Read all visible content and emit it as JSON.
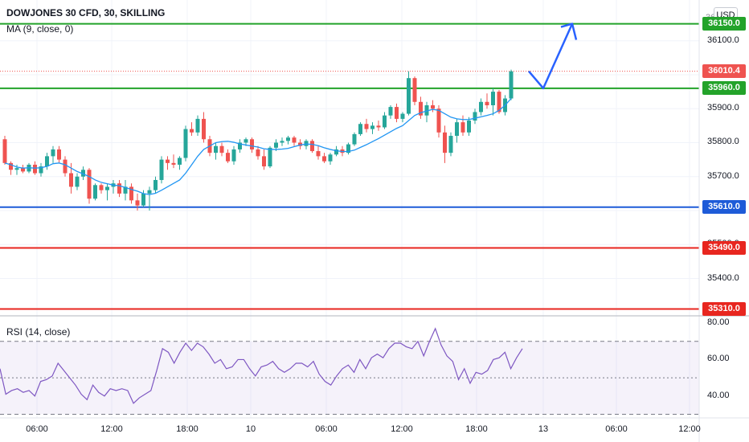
{
  "header": {
    "title": "DOWJONES 30 CFD, 30, SKILLING",
    "ma_label": "MA (9, close, 0)",
    "rsi_label": "RSI (14, close)",
    "currency": "USD",
    "top_price_partial": "36200.0"
  },
  "colors": {
    "up": "#26a69a",
    "down": "#ef5350",
    "ma": "#2196f3",
    "rsi": "#7e57c2",
    "green_level": "#23a32a",
    "blue_level": "#1e5bd8",
    "red_level": "#e8261f",
    "arrow": "#2962ff"
  },
  "chart_data": [
    {
      "type": "candlestick",
      "title": "DOWJONES 30 CFD, 30, SKILLING",
      "y_ticks": [
        35400.0,
        35500.0,
        35600.0,
        35700.0,
        35800.0,
        35900.0,
        36000.0,
        36100.0
      ],
      "y_tick_labels": [
        "35400.0",
        "35500.0",
        "35600.0",
        "35700.0",
        "35800.0",
        "35900.0",
        "36000.0",
        "36100.0"
      ],
      "ylim": [
        35290,
        36220
      ],
      "x_tick_labels": [
        "06:00",
        "12:00",
        "18:00",
        "10",
        "06:00",
        "12:00",
        "18:00",
        "13",
        "06:00",
        "12:00"
      ],
      "grid": true,
      "ohlc_approx": [
        [
          35810,
          35820,
          35735,
          35740
        ],
        [
          35740,
          35745,
          35705,
          35720
        ],
        [
          35720,
          35735,
          35705,
          35725
        ],
        [
          35725,
          35735,
          35710,
          35715
        ],
        [
          35715,
          35740,
          35710,
          35735
        ],
        [
          35735,
          35745,
          35705,
          35710
        ],
        [
          35710,
          35740,
          35700,
          35730
        ],
        [
          35730,
          35770,
          35720,
          35760
        ],
        [
          35760,
          35790,
          35740,
          35780
        ],
        [
          35780,
          35790,
          35740,
          35750
        ],
        [
          35750,
          35760,
          35700,
          35710
        ],
        [
          35710,
          35740,
          35650,
          35670
        ],
        [
          35670,
          35710,
          35660,
          35700
        ],
        [
          35700,
          35730,
          35690,
          35720
        ],
        [
          35720,
          35725,
          35620,
          35635
        ],
        [
          35635,
          35680,
          35630,
          35675
        ],
        [
          35675,
          35680,
          35650,
          35660
        ],
        [
          35660,
          35680,
          35630,
          35670
        ],
        [
          35670,
          35690,
          35650,
          35680
        ],
        [
          35680,
          35690,
          35640,
          35650
        ],
        [
          35650,
          35690,
          35630,
          35670
        ],
        [
          35670,
          35680,
          35620,
          35630
        ],
        [
          35630,
          35650,
          35600,
          35615
        ],
        [
          35615,
          35660,
          35610,
          35650
        ],
        [
          35650,
          35670,
          35600,
          35660
        ],
        [
          35660,
          35700,
          35650,
          35690
        ],
        [
          35690,
          35760,
          35680,
          35750
        ],
        [
          35750,
          35760,
          35720,
          35740
        ],
        [
          35740,
          35765,
          35725,
          35735
        ],
        [
          35735,
          35760,
          35720,
          35755
        ],
        [
          35755,
          35850,
          35745,
          35840
        ],
        [
          35840,
          35860,
          35820,
          35830
        ],
        [
          35830,
          35880,
          35820,
          35870
        ],
        [
          35870,
          35890,
          35800,
          35810
        ],
        [
          35810,
          35820,
          35760,
          35770
        ],
        [
          35770,
          35800,
          35750,
          35790
        ],
        [
          35790,
          35800,
          35760,
          35770
        ],
        [
          35770,
          35780,
          35740,
          35745
        ],
        [
          35745,
          35790,
          35735,
          35780
        ],
        [
          35780,
          35810,
          35770,
          35800
        ],
        [
          35800,
          35815,
          35790,
          35810
        ],
        [
          35810,
          35815,
          35770,
          35780
        ],
        [
          35780,
          35790,
          35750,
          35760
        ],
        [
          35760,
          35780,
          35720,
          35730
        ],
        [
          35730,
          35790,
          35725,
          35785
        ],
        [
          35785,
          35810,
          35775,
          35800
        ],
        [
          35800,
          35815,
          35790,
          35805
        ],
        [
          35805,
          35820,
          35795,
          35815
        ],
        [
          35815,
          35820,
          35790,
          35800
        ],
        [
          35800,
          35810,
          35780,
          35790
        ],
        [
          35790,
          35810,
          35780,
          35805
        ],
        [
          35805,
          35810,
          35770,
          35775
        ],
        [
          35775,
          35790,
          35750,
          35760
        ],
        [
          35760,
          35770,
          35740,
          35745
        ],
        [
          35745,
          35770,
          35735,
          35765
        ],
        [
          35765,
          35790,
          35760,
          35780
        ],
        [
          35780,
          35790,
          35760,
          35770
        ],
        [
          35770,
          35800,
          35765,
          35795
        ],
        [
          35795,
          35830,
          35790,
          35825
        ],
        [
          35825,
          35860,
          35820,
          35855
        ],
        [
          35855,
          35870,
          35830,
          35840
        ],
        [
          35840,
          35860,
          35825,
          35850
        ],
        [
          35850,
          35865,
          35835,
          35845
        ],
        [
          35845,
          35890,
          35840,
          35880
        ],
        [
          35880,
          35910,
          35870,
          35905
        ],
        [
          35905,
          35915,
          35860,
          35870
        ],
        [
          35870,
          35890,
          35860,
          35885
        ],
        [
          35885,
          36010,
          35880,
          35990
        ],
        [
          35990,
          35995,
          35910,
          35920
        ],
        [
          35920,
          35935,
          35870,
          35880
        ],
        [
          35880,
          35920,
          35860,
          35910
        ],
        [
          35910,
          35925,
          35890,
          35900
        ],
        [
          35900,
          35910,
          35815,
          35830
        ],
        [
          35830,
          35850,
          35740,
          35770
        ],
        [
          35770,
          35830,
          35760,
          35820
        ],
        [
          35820,
          35870,
          35800,
          35860
        ],
        [
          35860,
          35880,
          35820,
          35830
        ],
        [
          35830,
          35875,
          35820,
          35865
        ],
        [
          35865,
          35900,
          35855,
          35890
        ],
        [
          35890,
          35930,
          35880,
          35920
        ],
        [
          35920,
          35945,
          35900,
          35910
        ],
        [
          35910,
          35960,
          35880,
          35950
        ],
        [
          35950,
          35955,
          35885,
          35890
        ],
        [
          35890,
          35940,
          35880,
          35930
        ],
        [
          35930,
          36015,
          35925,
          36010
        ]
      ],
      "ma_approx": [
        35740,
        35735,
        35728,
        35725,
        35726,
        35725,
        35726,
        35730,
        35738,
        35740,
        35735,
        35725,
        35715,
        35708,
        35700,
        35690,
        35683,
        35679,
        35675,
        35673,
        35668,
        35662,
        35657,
        35650,
        35647,
        35651,
        35660,
        35670,
        35680,
        35690,
        35710,
        35735,
        35760,
        35780,
        35790,
        35800,
        35803,
        35804,
        35801,
        35796,
        35793,
        35790,
        35787,
        35782,
        35780,
        35780,
        35781,
        35783,
        35788,
        35793,
        35796,
        35795,
        35791,
        35785,
        35780,
        35776,
        35774,
        35774,
        35778,
        35786,
        35794,
        35803,
        35812,
        35822,
        35832,
        35842,
        35850,
        35865,
        35880,
        35888,
        35893,
        35898,
        35895,
        35885,
        35875,
        35870,
        35868,
        35868,
        35872,
        35876,
        35880,
        35885,
        35895,
        35910,
        35930
      ]
    },
    {
      "type": "line",
      "title": "RSI (14, close)",
      "y_ticks": [
        40.0,
        60.0,
        80.0
      ],
      "y_tick_labels": [
        "40.00",
        "60.00",
        "80.00"
      ],
      "ylim": [
        28,
        84
      ],
      "band": [
        30,
        70
      ],
      "values": [
        55,
        41,
        43,
        44,
        42,
        43,
        40,
        48,
        49,
        51,
        58,
        54,
        50,
        46,
        41,
        38,
        46,
        42,
        40,
        44,
        43,
        44,
        43,
        36,
        39,
        41,
        43,
        54,
        66,
        64,
        58,
        64,
        69,
        65,
        69,
        67,
        63,
        58,
        60,
        55,
        56,
        60,
        60,
        55,
        51,
        56,
        57,
        59,
        55,
        53,
        55,
        58,
        58,
        56,
        59,
        52,
        48,
        46,
        51,
        55,
        57,
        53,
        60,
        55,
        61,
        63,
        61,
        66,
        69,
        69,
        67,
        66,
        70,
        62,
        70,
        77,
        68,
        62,
        59,
        49,
        55,
        47,
        53,
        52,
        54,
        60,
        61,
        64,
        55,
        61,
        66
      ],
      "ref_lines": [
        30,
        50,
        70
      ]
    }
  ],
  "levels": [
    {
      "label": "36150.0",
      "value": 36150.0,
      "color_key": "green_level"
    },
    {
      "label": "35960.0",
      "value": 35960.0,
      "color_key": "green_level"
    },
    {
      "label": "35610.0",
      "value": 35610.0,
      "color_key": "blue_level"
    },
    {
      "label": "35490.0",
      "value": 35490.0,
      "color_key": "red_level"
    },
    {
      "label": "35310.0",
      "value": 35310.0,
      "color_key": "red_level"
    }
  ],
  "last_price": {
    "label": "36010.4",
    "value": 36010.4
  },
  "projection_arrow": [
    [
      658,
      36010
    ],
    [
      676,
      35960
    ],
    [
      712,
      36150
    ]
  ]
}
